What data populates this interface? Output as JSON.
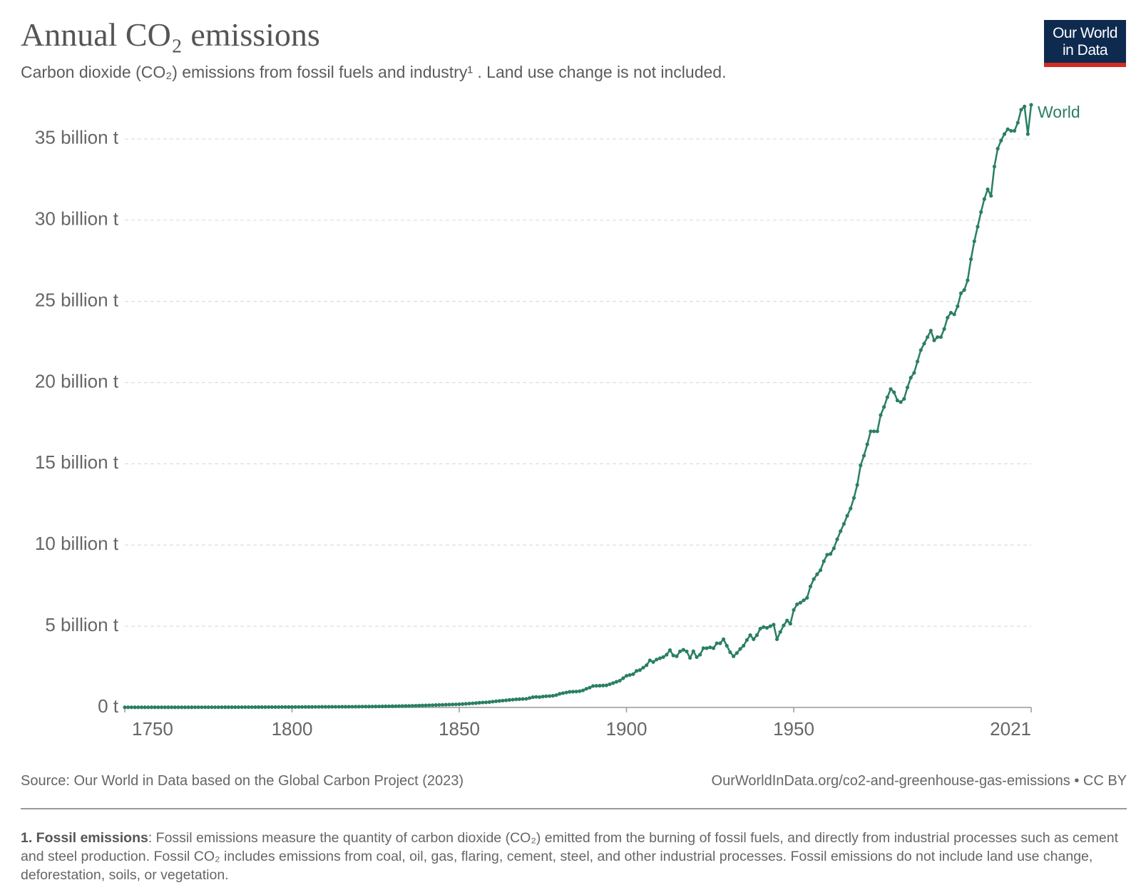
{
  "header": {
    "title": "Annual CO₂ emissions",
    "subtitle": "Carbon dioxide (CO₂) emissions from fossil fuels and industry¹ . Land use change is not included.",
    "logo": [
      "Our World",
      "in Data"
    ]
  },
  "chart_data": {
    "type": "line",
    "x": [
      1750,
      1751,
      1752,
      1753,
      1754,
      1755,
      1756,
      1757,
      1758,
      1759,
      1760,
      1761,
      1762,
      1763,
      1764,
      1765,
      1766,
      1767,
      1768,
      1769,
      1770,
      1771,
      1772,
      1773,
      1774,
      1775,
      1776,
      1777,
      1778,
      1779,
      1780,
      1781,
      1782,
      1783,
      1784,
      1785,
      1786,
      1787,
      1788,
      1789,
      1790,
      1791,
      1792,
      1793,
      1794,
      1795,
      1796,
      1797,
      1798,
      1799,
      1800,
      1801,
      1802,
      1803,
      1804,
      1805,
      1806,
      1807,
      1808,
      1809,
      1810,
      1811,
      1812,
      1813,
      1814,
      1815,
      1816,
      1817,
      1818,
      1819,
      1820,
      1821,
      1822,
      1823,
      1824,
      1825,
      1826,
      1827,
      1828,
      1829,
      1830,
      1831,
      1832,
      1833,
      1834,
      1835,
      1836,
      1837,
      1838,
      1839,
      1840,
      1841,
      1842,
      1843,
      1844,
      1845,
      1846,
      1847,
      1848,
      1849,
      1850,
      1851,
      1852,
      1853,
      1854,
      1855,
      1856,
      1857,
      1858,
      1859,
      1860,
      1861,
      1862,
      1863,
      1864,
      1865,
      1866,
      1867,
      1868,
      1869,
      1870,
      1871,
      1872,
      1873,
      1874,
      1875,
      1876,
      1877,
      1878,
      1879,
      1880,
      1881,
      1882,
      1883,
      1884,
      1885,
      1886,
      1887,
      1888,
      1889,
      1890,
      1891,
      1892,
      1893,
      1894,
      1895,
      1896,
      1897,
      1898,
      1899,
      1900,
      1901,
      1902,
      1903,
      1904,
      1905,
      1906,
      1907,
      1908,
      1909,
      1910,
      1911,
      1912,
      1913,
      1914,
      1915,
      1916,
      1917,
      1918,
      1919,
      1920,
      1921,
      1922,
      1923,
      1924,
      1925,
      1926,
      1927,
      1928,
      1929,
      1930,
      1931,
      1932,
      1933,
      1934,
      1935,
      1936,
      1937,
      1938,
      1939,
      1940,
      1941,
      1942,
      1943,
      1944,
      1945,
      1946,
      1947,
      1948,
      1949,
      1950,
      1951,
      1952,
      1953,
      1954,
      1955,
      1956,
      1957,
      1958,
      1959,
      1960,
      1961,
      1962,
      1963,
      1964,
      1965,
      1966,
      1967,
      1968,
      1969,
      1970,
      1971,
      1972,
      1973,
      1974,
      1975,
      1976,
      1977,
      1978,
      1979,
      1980,
      1981,
      1982,
      1983,
      1984,
      1985,
      1986,
      1987,
      1988,
      1989,
      1990,
      1991,
      1992,
      1993,
      1994,
      1995,
      1996,
      1997,
      1998,
      1999,
      2000,
      2001,
      2002,
      2003,
      2004,
      2005,
      2006,
      2007,
      2008,
      2009,
      2010,
      2011,
      2012,
      2013,
      2014,
      2015,
      2016,
      2017,
      2018,
      2019,
      2020,
      2021
    ],
    "series": [
      {
        "name": "World",
        "color": "#2a7f62",
        "values": [
          9400000.0,
          9400000.0,
          9500000.0,
          9500000.0,
          9600000.0,
          9600000.0,
          9700000.0,
          9800000.0,
          9900000.0,
          10000000.0,
          10300000.0,
          10400000.0,
          10500000.0,
          10700000.0,
          10800000.0,
          11000000.0,
          11200000.0,
          11400000.0,
          11600000.0,
          11900000.0,
          12100000.0,
          12400000.0,
          12700000.0,
          13000000.0,
          13300000.0,
          13600000.0,
          14000000.0,
          14300000.0,
          14700000.0,
          15100000.0,
          15600000.0,
          16000000.0,
          16500000.0,
          17000000.0,
          17500000.0,
          18000000.0,
          18600000.0,
          19200000.0,
          19800000.0,
          20400000.0,
          21000000.0,
          21700000.0,
          22400000.0,
          23100000.0,
          23800000.0,
          24500000.0,
          25300000.0,
          26100000.0,
          26900000.0,
          27700000.0,
          28200000.0,
          29000000.0,
          30000000.0,
          31000000.0,
          32000000.0,
          33000000.0,
          34000000.0,
          35000000.0,
          36000000.0,
          37000000.0,
          38000000.0,
          39000000.0,
          40000000.0,
          41000000.0,
          42000000.0,
          43000000.0,
          44000000.0,
          45000000.0,
          46000000.0,
          48000000.0,
          50000000.0,
          52000000.0,
          54000000.0,
          56000000.0,
          58000000.0,
          61000000.0,
          64000000.0,
          67000000.0,
          70000000.0,
          73000000.0,
          76000000.0,
          80000000.0,
          84000000.0,
          88000000.0,
          92000000.0,
          97000000.0,
          102000000.0,
          108000000.0,
          114000000.0,
          120000000.0,
          127000000.0,
          134000000.0,
          141000000.0,
          148000000.0,
          155000000.0,
          163000000.0,
          171000000.0,
          178000000.0,
          184000000.0,
          190000000.0,
          197000000.0,
          210000000.0,
          225000000.0,
          240000000.0,
          255000000.0,
          270000000.0,
          290000000.0,
          305000000.0,
          315000000.0,
          330000000.0,
          360000000.0,
          380000000.0,
          400000000.0,
          420000000.0,
          440000000.0,
          460000000.0,
          480000000.0,
          500000000.0,
          510000000.0,
          520000000.0,
          530000000.0,
          580000000.0,
          630000000.0,
          650000000.0,
          640000000.0,
          670000000.0,
          690000000.0,
          700000000.0,
          720000000.0,
          760000000.0,
          840000000.0,
          880000000.0,
          920000000.0,
          960000000.0,
          970000000.0,
          980000000.0,
          1000000000.0,
          1050000000.0,
          1150000000.0,
          1220000000.0,
          1320000000.0,
          1330000000.0,
          1340000000.0,
          1350000000.0,
          1360000000.0,
          1430000000.0,
          1500000000.0,
          1580000000.0,
          1650000000.0,
          1800000000.0,
          1950000000.0,
          2000000000.0,
          2050000000.0,
          2250000000.0,
          2300000000.0,
          2450000000.0,
          2600000000.0,
          2900000000.0,
          2800000000.0,
          2950000000.0,
          3030000000.0,
          3100000000.0,
          3250000000.0,
          3530000000.0,
          3200000000.0,
          3150000000.0,
          3450000000.0,
          3550000000.0,
          3450000000.0,
          3050000000.0,
          3460000000.0,
          3100000000.0,
          3250000000.0,
          3650000000.0,
          3650000000.0,
          3700000000.0,
          3650000000.0,
          3950000000.0,
          3950000000.0,
          4200000000.0,
          3800000000.0,
          3400000000.0,
          3150000000.0,
          3350000000.0,
          3600000000.0,
          3800000000.0,
          4150000000.0,
          4450000000.0,
          4200000000.0,
          4450000000.0,
          4850000000.0,
          4950000000.0,
          4900000000.0,
          5000000000.0,
          5100000000.0,
          4200000000.0,
          4650000000.0,
          5050000000.0,
          5350000000.0,
          5150000000.0,
          6000000000.0,
          6350000000.0,
          6450000000.0,
          6600000000.0,
          6750000000.0,
          7450000000.0,
          7900000000.0,
          8200000000.0,
          8450000000.0,
          9000000000.0,
          9400000000.0,
          9450000000.0,
          9800000000.0,
          10350000000.0,
          10850000000.0,
          11300000000.0,
          11800000000.0,
          12250000000.0,
          12900000000.0,
          13700000000.0,
          14900000000.0,
          15500000000.0,
          16200000000.0,
          17000000000.0,
          17000000000.0,
          17000000000.0,
          18000000000.0,
          18500000000.0,
          19100000000.0,
          19600000000.0,
          19400000000.0,
          18900000000.0,
          18800000000.0,
          19000000000.0,
          19700000000.0,
          20300000000.0,
          20600000000.0,
          21300000000.0,
          22000000000.0,
          22400000000.0,
          22800000000.0,
          23200000000.0,
          22600000000.0,
          22800000000.0,
          22800000000.0,
          23300000000.0,
          24000000000.0,
          24300000000.0,
          24200000000.0,
          24700000000.0,
          25500000000.0,
          25700000000.0,
          26300000000.0,
          27600000000.0,
          28700000000.0,
          29600000000.0,
          30500000000.0,
          31300000000.0,
          31900000000.0,
          31500000000.0,
          33300000000.0,
          34400000000.0,
          34900000000.0,
          35300000000.0,
          35600000000.0,
          35500000000.0,
          35500000000.0,
          36000000000.0,
          36800000000.0,
          37000000000.0,
          35300000000.0,
          37100000000.0
        ]
      }
    ],
    "xlim": [
      1750,
      2021
    ],
    "xticks": [
      1750,
      1800,
      1850,
      1900,
      1950,
      2021
    ],
    "ylim": [
      0,
      37100000000.0
    ],
    "yticks": [
      {
        "value": 0,
        "label": "0 t"
      },
      {
        "value": 5000000000.0,
        "label": "5 billion t"
      },
      {
        "value": 10000000000.0,
        "label": "10 billion t"
      },
      {
        "value": 15000000000.0,
        "label": "15 billion t"
      },
      {
        "value": 20000000000.0,
        "label": "20 billion t"
      },
      {
        "value": 25000000000.0,
        "label": "25 billion t"
      },
      {
        "value": 30000000000.0,
        "label": "30 billion t"
      },
      {
        "value": 35000000000.0,
        "label": "35 billion t"
      }
    ],
    "grid": true
  },
  "footer": {
    "source": "Source: Our World in Data based on the Global Carbon Project (2023)",
    "url": "OurWorldInData.org/co2-and-greenhouse-gas-emissions • CC BY",
    "footnote_label": "1. Fossil emissions",
    "footnote_text": ": Fossil emissions measure the quantity of carbon dioxide (CO₂) emitted from the burning of fossil fuels, and directly from industrial processes such as cement and steel production. Fossil CO₂ includes emissions from coal, oil, gas, flaring, cement, steel, and other industrial processes. Fossil emissions do not include land use change, deforestation, soils, or vegetation."
  }
}
